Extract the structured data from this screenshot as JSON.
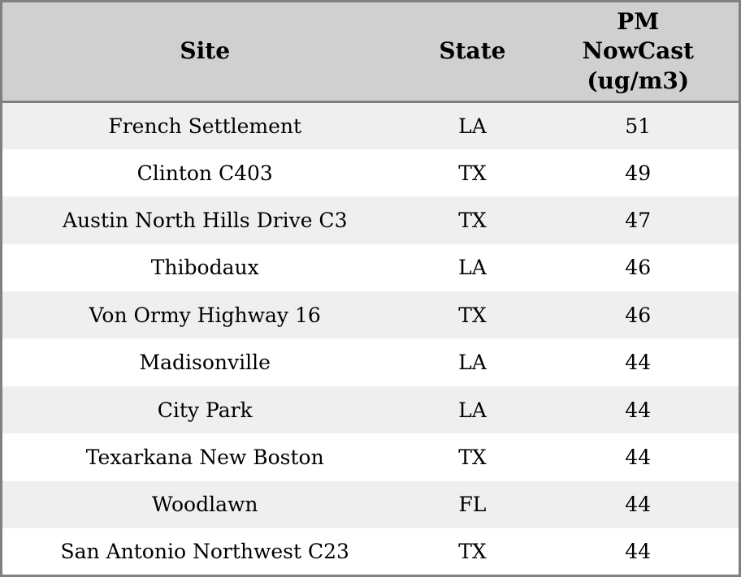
{
  "chart_data": {
    "type": "table",
    "columns": [
      "Site",
      "State",
      "PM NowCast (ug/m3)"
    ],
    "rows": [
      [
        "French Settlement",
        "LA",
        51
      ],
      [
        "Clinton C403",
        "TX",
        49
      ],
      [
        "Austin North Hills Drive C3",
        "TX",
        47
      ],
      [
        "Thibodaux",
        "LA",
        46
      ],
      [
        "Von Ormy Highway 16",
        "TX",
        46
      ],
      [
        "Madisonville",
        "LA",
        44
      ],
      [
        "City Park",
        "LA",
        44
      ],
      [
        "Texarkana New Boston",
        "TX",
        44
      ],
      [
        "Woodlawn",
        "FL",
        44
      ],
      [
        "San Antonio Northwest C23",
        "TX",
        44
      ]
    ]
  },
  "table": {
    "headers": {
      "site": "Site",
      "state": "State",
      "pm": "PM\nNowCast\n(ug/m3)"
    }
  },
  "colors": {
    "border": "#808080",
    "header_bg": "#d0d0d0",
    "row_alt_bg": "#efefef",
    "row_bg": "#ffffff",
    "text": "#000000"
  }
}
